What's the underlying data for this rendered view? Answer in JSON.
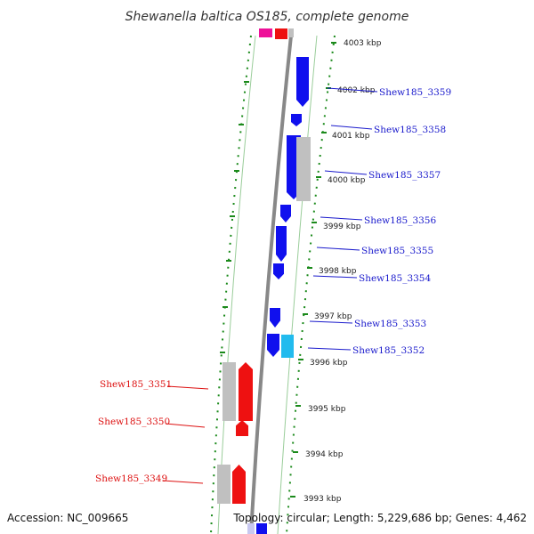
{
  "title": "Shewanella baltica OS185, complete genome",
  "footer": {
    "accession": "Accession: NC_009665",
    "topology": "Topology: circular; Length: 5,229,686 bp; Genes: 4,462"
  },
  "colors": {
    "forward_gene": "#1010ee",
    "forward_label": "#1a1acc",
    "reverse_gene": "#ee1111",
    "reverse_label": "#dd1111",
    "pseudogene": "#c0c0c0",
    "highlight_cyan": "#22bbee",
    "highlight_magenta": "#ee1199",
    "backbone": "#888888",
    "tick": "#1b8a1b"
  },
  "scale_ticks": [
    {
      "label": "4003 kbp"
    },
    {
      "label": "4002 kbp"
    },
    {
      "label": "4001 kbp"
    },
    {
      "label": "4000 kbp"
    },
    {
      "label": "3999 kbp"
    },
    {
      "label": "3998 kbp"
    },
    {
      "label": "3997 kbp"
    },
    {
      "label": "3996 kbp"
    },
    {
      "label": "3995 kbp"
    },
    {
      "label": "3994 kbp"
    },
    {
      "label": "3993 kbp"
    }
  ],
  "forward_genes": [
    {
      "label": "Shew185_3359"
    },
    {
      "label": "Shew185_3358"
    },
    {
      "label": "Shew185_3357"
    },
    {
      "label": "Shew185_3356"
    },
    {
      "label": "Shew185_3355"
    },
    {
      "label": "Shew185_3354"
    },
    {
      "label": "Shew185_3353"
    },
    {
      "label": "Shew185_3352"
    }
  ],
  "reverse_genes": [
    {
      "label": "Shew185_3351"
    },
    {
      "label": "Shew185_3350"
    },
    {
      "label": "Shew185_3349"
    }
  ]
}
